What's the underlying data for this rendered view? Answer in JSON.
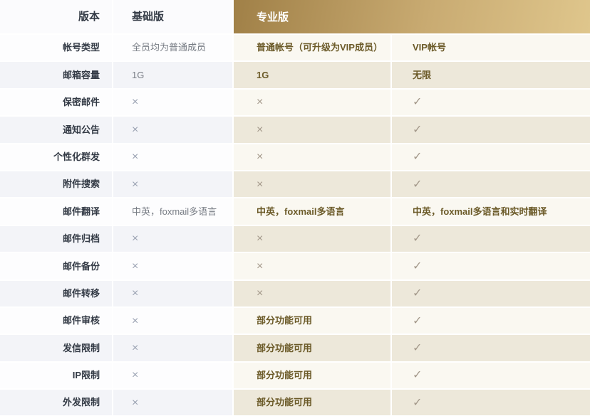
{
  "header": {
    "version_label": "版本",
    "basic_label": "基础版",
    "pro_label": "专业版"
  },
  "symbols": {
    "cross": "×",
    "check": "✓"
  },
  "colors": {
    "gold_gradient_start": "#a08047",
    "gold_gradient_end": "#dfc68c",
    "pro_text": "#6b5a28",
    "label_text": "#333a45",
    "basic_text": "#787d85",
    "basic_cross": "#9aa2b2",
    "pro_mark": "#a3988a",
    "row_left_light": "#fdfdfe",
    "row_left_dark": "#f3f4f8",
    "row_pro_light": "#faf8f1",
    "row_pro_dark": "#ede8da"
  },
  "rows": [
    {
      "label": "帐号类型",
      "basic": {
        "kind": "text",
        "text": "全员均为普通成员"
      },
      "pro": {
        "kind": "text",
        "text": "普通帐号（可升级为VIP成员）"
      },
      "vip": {
        "kind": "text",
        "text": "VIP帐号"
      }
    },
    {
      "label": "邮箱容量",
      "basic": {
        "kind": "text",
        "text": "1G"
      },
      "pro": {
        "kind": "text",
        "text": "1G"
      },
      "vip": {
        "kind": "text",
        "text": "无限"
      }
    },
    {
      "label": "保密邮件",
      "basic": {
        "kind": "cross"
      },
      "pro": {
        "kind": "cross"
      },
      "vip": {
        "kind": "check"
      }
    },
    {
      "label": "通知公告",
      "basic": {
        "kind": "cross"
      },
      "pro": {
        "kind": "cross"
      },
      "vip": {
        "kind": "check"
      }
    },
    {
      "label": "个性化群发",
      "basic": {
        "kind": "cross"
      },
      "pro": {
        "kind": "cross"
      },
      "vip": {
        "kind": "check"
      }
    },
    {
      "label": "附件搜索",
      "basic": {
        "kind": "cross"
      },
      "pro": {
        "kind": "cross"
      },
      "vip": {
        "kind": "check"
      }
    },
    {
      "label": "邮件翻译",
      "basic": {
        "kind": "text",
        "text": "中英，foxmail多语言"
      },
      "pro": {
        "kind": "text",
        "text": "中英，foxmail多语言"
      },
      "vip": {
        "kind": "text",
        "text": "中英，foxmail多语言和实时翻译"
      }
    },
    {
      "label": "邮件归档",
      "basic": {
        "kind": "cross"
      },
      "pro": {
        "kind": "cross"
      },
      "vip": {
        "kind": "check"
      }
    },
    {
      "label": "邮件备份",
      "basic": {
        "kind": "cross"
      },
      "pro": {
        "kind": "cross"
      },
      "vip": {
        "kind": "check"
      }
    },
    {
      "label": "邮件转移",
      "basic": {
        "kind": "cross"
      },
      "pro": {
        "kind": "cross"
      },
      "vip": {
        "kind": "check"
      }
    },
    {
      "label": "邮件审核",
      "basic": {
        "kind": "cross"
      },
      "pro": {
        "kind": "text",
        "text": "部分功能可用"
      },
      "vip": {
        "kind": "check"
      }
    },
    {
      "label": "发信限制",
      "basic": {
        "kind": "cross"
      },
      "pro": {
        "kind": "text",
        "text": "部分功能可用"
      },
      "vip": {
        "kind": "check"
      }
    },
    {
      "label": "IP限制",
      "basic": {
        "kind": "cross"
      },
      "pro": {
        "kind": "text",
        "text": "部分功能可用"
      },
      "vip": {
        "kind": "check"
      }
    },
    {
      "label": "外发限制",
      "basic": {
        "kind": "cross"
      },
      "pro": {
        "kind": "text",
        "text": "部分功能可用"
      },
      "vip": {
        "kind": "check"
      }
    }
  ]
}
